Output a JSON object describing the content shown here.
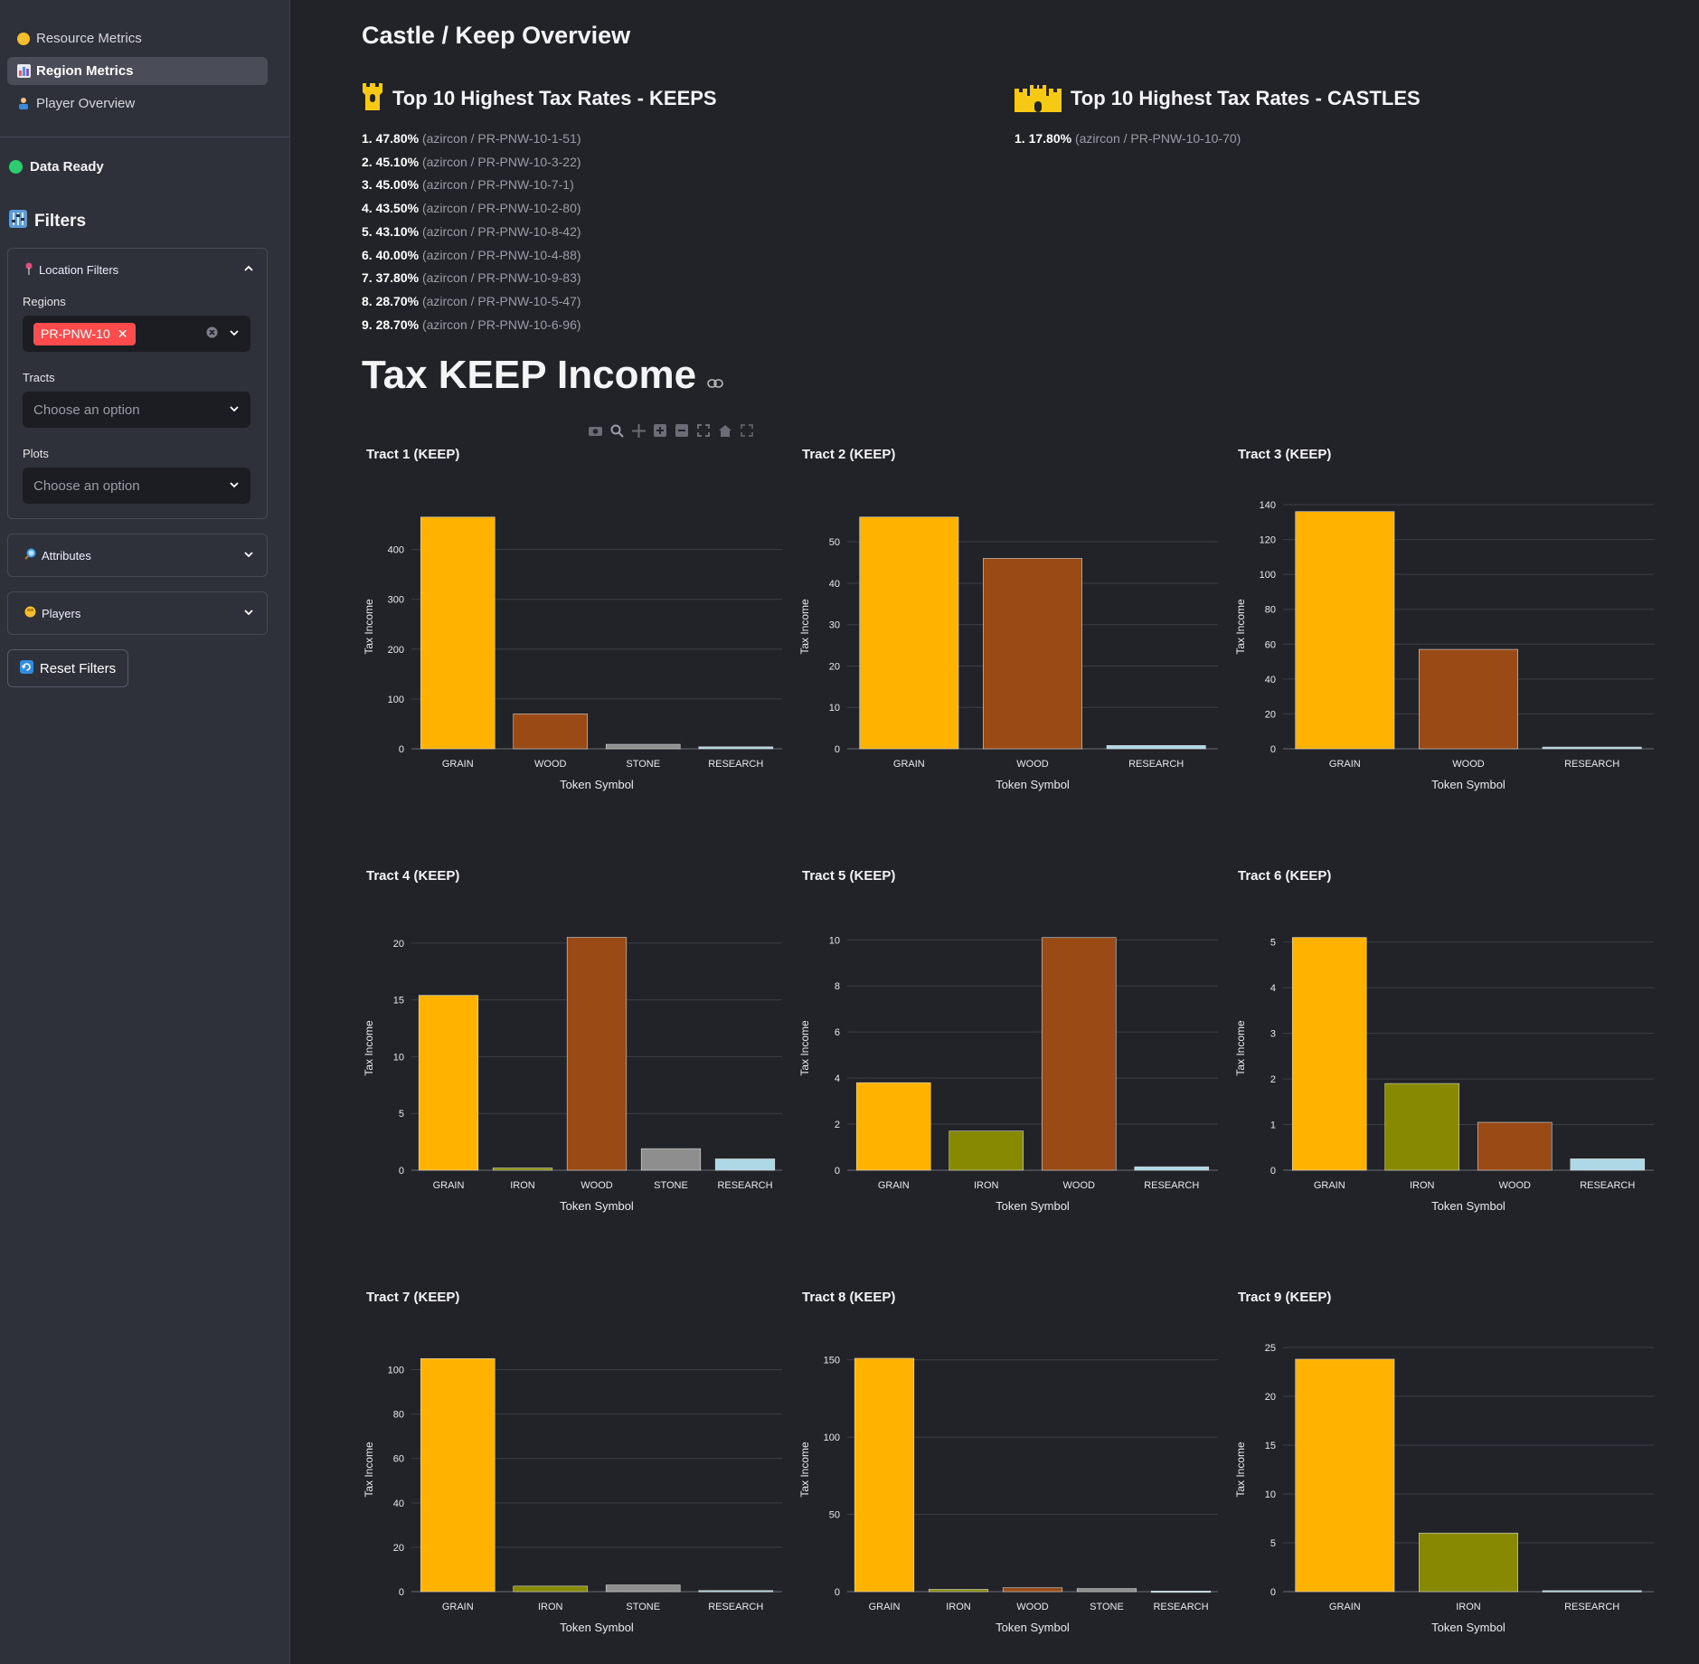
{
  "sidebar": {
    "nav": [
      {
        "label": "Resource Metrics",
        "icon": "yellow-circle-icon",
        "active": false
      },
      {
        "label": "Region Metrics",
        "icon": "bar-chart-icon",
        "active": true
      },
      {
        "label": "Player Overview",
        "icon": "player-icon",
        "active": false
      }
    ],
    "status": "Data Ready",
    "filters_title": "Filters",
    "location_filters": {
      "title": "Location Filters",
      "regions_label": "Regions",
      "regions_selected": "PR-PNW-10",
      "tracts_label": "Tracts",
      "tracts_placeholder": "Choose an option",
      "plots_label": "Plots",
      "plots_placeholder": "Choose an option"
    },
    "attributes_title": "Attributes",
    "players_title": "Players",
    "reset_label": "Reset Filters"
  },
  "main": {
    "overview_title": "Castle / Keep Overview",
    "keeps_title": "Top 10 Highest Tax Rates - KEEPS",
    "castles_title": "Top 10 Highest Tax Rates - CASTLES",
    "keeps": [
      {
        "rank": "1.",
        "rate": "47.80%",
        "detail": "(azircon / PR-PNW-10-1-51)"
      },
      {
        "rank": "2.",
        "rate": "45.10%",
        "detail": "(azircon / PR-PNW-10-3-22)"
      },
      {
        "rank": "3.",
        "rate": "45.00%",
        "detail": "(azircon / PR-PNW-10-7-1)"
      },
      {
        "rank": "4.",
        "rate": "43.50%",
        "detail": "(azircon / PR-PNW-10-2-80)"
      },
      {
        "rank": "5.",
        "rate": "43.10%",
        "detail": "(azircon / PR-PNW-10-8-42)"
      },
      {
        "rank": "6.",
        "rate": "40.00%",
        "detail": "(azircon / PR-PNW-10-4-88)"
      },
      {
        "rank": "7.",
        "rate": "37.80%",
        "detail": "(azircon / PR-PNW-10-9-83)"
      },
      {
        "rank": "8.",
        "rate": "28.70%",
        "detail": "(azircon / PR-PNW-10-5-47)"
      },
      {
        "rank": "9.",
        "rate": "28.70%",
        "detail": "(azircon / PR-PNW-10-6-96)"
      }
    ],
    "castles": [
      {
        "rank": "1.",
        "rate": "17.80%",
        "detail": "(azircon / PR-PNW-10-10-70)"
      }
    ],
    "tax_title": "Tax KEEP Income"
  },
  "token_colors": {
    "GRAIN": "#ffb300",
    "WOOD": "#9a4b15",
    "STONE": "#8e8e8e",
    "RESEARCH": "#add8e6",
    "IRON": "#878a00"
  },
  "chart_data": [
    {
      "type": "bar",
      "title": "Tract 1 (KEEP)",
      "xlabel": "Token Symbol",
      "ylabel": "Tax Income",
      "categories": [
        "GRAIN",
        "WOOD",
        "STONE",
        "RESEARCH"
      ],
      "values": [
        465,
        70,
        9,
        4
      ],
      "yticks": [
        0,
        100,
        200,
        300,
        400
      ],
      "ylim": [
        0,
        490
      ]
    },
    {
      "type": "bar",
      "title": "Tract 2 (KEEP)",
      "xlabel": "Token Symbol",
      "ylabel": "Tax Income",
      "categories": [
        "GRAIN",
        "WOOD",
        "RESEARCH"
      ],
      "values": [
        56,
        46,
        0.8
      ],
      "yticks": [
        0,
        10,
        20,
        30,
        40,
        50
      ],
      "ylim": [
        0,
        59
      ]
    },
    {
      "type": "bar",
      "title": "Tract 3 (KEEP)",
      "xlabel": "Token Symbol",
      "ylabel": "Tax Income",
      "categories": [
        "GRAIN",
        "WOOD",
        "RESEARCH"
      ],
      "values": [
        136,
        57,
        1
      ],
      "yticks": [
        0,
        20,
        40,
        60,
        80,
        100,
        120,
        140
      ],
      "ylim": [
        0,
        140
      ]
    },
    {
      "type": "bar",
      "title": "Tract 4 (KEEP)",
      "xlabel": "Token Symbol",
      "ylabel": "Tax Income",
      "categories": [
        "GRAIN",
        "IRON",
        "WOOD",
        "STONE",
        "RESEARCH"
      ],
      "values": [
        15.4,
        0.2,
        20.5,
        1.9,
        1.0
      ],
      "yticks": [
        0,
        5,
        10,
        15,
        20
      ],
      "ylim": [
        0,
        21.5
      ]
    },
    {
      "type": "bar",
      "title": "Tract 5 (KEEP)",
      "xlabel": "Token Symbol",
      "ylabel": "Tax Income",
      "categories": [
        "GRAIN",
        "IRON",
        "WOOD",
        "RESEARCH"
      ],
      "values": [
        3.8,
        1.7,
        10.1,
        0.15
      ],
      "yticks": [
        0,
        2,
        4,
        6,
        8,
        10
      ],
      "ylim": [
        0,
        10.6
      ]
    },
    {
      "type": "bar",
      "title": "Tract 6 (KEEP)",
      "xlabel": "Token Symbol",
      "ylabel": "Tax Income",
      "categories": [
        "GRAIN",
        "IRON",
        "WOOD",
        "RESEARCH"
      ],
      "values": [
        5.1,
        1.9,
        1.05,
        0.25
      ],
      "yticks": [
        0,
        1,
        2,
        3,
        4,
        5
      ],
      "ylim": [
        0,
        5.35
      ]
    },
    {
      "type": "bar",
      "title": "Tract 7 (KEEP)",
      "xlabel": "Token Symbol",
      "ylabel": "Tax Income",
      "categories": [
        "GRAIN",
        "IRON",
        "STONE",
        "RESEARCH"
      ],
      "values": [
        105,
        2.5,
        3,
        0.5
      ],
      "yticks": [
        0,
        20,
        40,
        60,
        80,
        100
      ],
      "ylim": [
        0,
        110
      ]
    },
    {
      "type": "bar",
      "title": "Tract 8 (KEEP)",
      "xlabel": "Token Symbol",
      "ylabel": "Tax Income",
      "categories": [
        "GRAIN",
        "IRON",
        "WOOD",
        "STONE",
        "RESEARCH"
      ],
      "values": [
        151,
        1.5,
        2.5,
        2,
        0.4
      ],
      "yticks": [
        0,
        50,
        100,
        150
      ],
      "ylim": [
        0,
        158
      ]
    },
    {
      "type": "bar",
      "title": "Tract 9 (KEEP)",
      "xlabel": "Token Symbol",
      "ylabel": "Tax Income",
      "categories": [
        "GRAIN",
        "IRON",
        "RESEARCH"
      ],
      "values": [
        23.8,
        6.0,
        0.1
      ],
      "yticks": [
        0,
        5,
        10,
        15,
        20,
        25
      ],
      "ylim": [
        0,
        25
      ]
    }
  ]
}
